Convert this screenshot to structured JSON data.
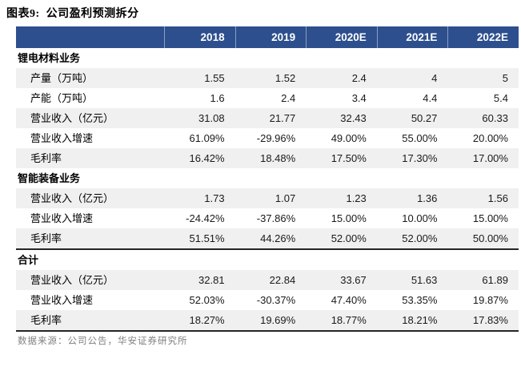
{
  "title": "图表9:  公司盈利预测拆分",
  "source": "数据来源：公司公告，华安证券研究所",
  "colors": {
    "header_bg": "#2D4F8E",
    "header_text": "#FFFFFF",
    "stripe": "#F0F0F0",
    "rule": "#262626",
    "source_text": "#7F7F7F"
  },
  "table": {
    "columns": [
      "2018",
      "2019",
      "2020E",
      "2021E",
      "2022E"
    ],
    "sections": [
      {
        "name": "锂电材料业务",
        "separator_above": false,
        "rows": [
          {
            "label": "产量（万吨）",
            "values": [
              "1.55",
              "1.52",
              "2.4",
              "4",
              "5"
            ]
          },
          {
            "label": "产能（万吨）",
            "values": [
              "1.6",
              "2.4",
              "3.4",
              "4.4",
              "5.4"
            ]
          },
          {
            "label": "营业收入（亿元）",
            "values": [
              "31.08",
              "21.77",
              "32.43",
              "50.27",
              "60.33"
            ]
          },
          {
            "label": "营业收入增速",
            "values": [
              "61.09%",
              "-29.96%",
              "49.00%",
              "55.00%",
              "20.00%"
            ]
          },
          {
            "label": "毛利率",
            "values": [
              "16.42%",
              "18.48%",
              "17.50%",
              "17.30%",
              "17.00%"
            ]
          }
        ]
      },
      {
        "name": "智能装备业务",
        "separator_above": false,
        "rows": [
          {
            "label": "营业收入（亿元）",
            "values": [
              "1.73",
              "1.07",
              "1.23",
              "1.36",
              "1.56"
            ]
          },
          {
            "label": "营业收入增速",
            "values": [
              "-24.42%",
              "-37.86%",
              "15.00%",
              "10.00%",
              "15.00%"
            ]
          },
          {
            "label": "毛利率",
            "values": [
              "51.51%",
              "44.26%",
              "52.00%",
              "52.00%",
              "50.00%"
            ]
          }
        ]
      },
      {
        "name": "合计",
        "separator_above": true,
        "rows": [
          {
            "label": "营业收入（亿元）",
            "values": [
              "32.81",
              "22.84",
              "33.67",
              "51.63",
              "61.89"
            ]
          },
          {
            "label": "营业收入增速",
            "values": [
              "52.03%",
              "-30.37%",
              "47.40%",
              "53.35%",
              "19.87%"
            ]
          },
          {
            "label": "毛利率",
            "values": [
              "18.27%",
              "19.69%",
              "18.77%",
              "18.21%",
              "17.83%"
            ]
          }
        ]
      }
    ]
  },
  "chart_data": {
    "type": "table",
    "title": "图表9:  公司盈利预测拆分",
    "columns": [
      "",
      "2018",
      "2019",
      "2020E",
      "2021E",
      "2022E"
    ],
    "rows": [
      [
        "锂电材料业务",
        "",
        "",
        "",
        "",
        ""
      ],
      [
        "产量（万吨）",
        "1.55",
        "1.52",
        "2.4",
        "4",
        "5"
      ],
      [
        "产能（万吨）",
        "1.6",
        "2.4",
        "3.4",
        "4.4",
        "5.4"
      ],
      [
        "营业收入（亿元）",
        "31.08",
        "21.77",
        "32.43",
        "50.27",
        "60.33"
      ],
      [
        "营业收入增速",
        "61.09%",
        "-29.96%",
        "49.00%",
        "55.00%",
        "20.00%"
      ],
      [
        "毛利率",
        "16.42%",
        "18.48%",
        "17.50%",
        "17.30%",
        "17.00%"
      ],
      [
        "智能装备业务",
        "",
        "",
        "",
        "",
        ""
      ],
      [
        "营业收入（亿元）",
        "1.73",
        "1.07",
        "1.23",
        "1.36",
        "1.56"
      ],
      [
        "营业收入增速",
        "-24.42%",
        "-37.86%",
        "15.00%",
        "10.00%",
        "15.00%"
      ],
      [
        "毛利率",
        "51.51%",
        "44.26%",
        "52.00%",
        "52.00%",
        "50.00%"
      ],
      [
        "合计",
        "",
        "",
        "",
        "",
        ""
      ],
      [
        "营业收入（亿元）",
        "32.81",
        "22.84",
        "33.67",
        "51.63",
        "61.89"
      ],
      [
        "营业收入增速",
        "52.03%",
        "-30.37%",
        "47.40%",
        "53.35%",
        "19.87%"
      ],
      [
        "毛利率",
        "18.27%",
        "19.69%",
        "18.77%",
        "18.21%",
        "17.83%"
      ]
    ],
    "annotations": [
      "数据来源：公司公告，华安证券研究所"
    ]
  }
}
